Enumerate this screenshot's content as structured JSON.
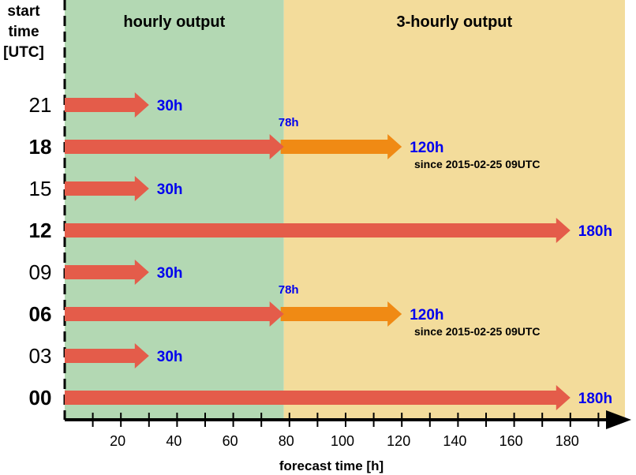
{
  "regions": {
    "hourly": {
      "label": "hourly output",
      "from": 0,
      "to": 78,
      "color": "#b3d8b3"
    },
    "threehourly": {
      "label": "3-hourly output",
      "from": 78,
      "to": 198,
      "color": "#f3dc9b"
    }
  },
  "y_axis": {
    "title_lines": [
      "start",
      "time",
      "[UTC]"
    ]
  },
  "x_axis": {
    "title": "forecast time [h]",
    "max": 198,
    "minor_tick_step": 10,
    "labels": [
      "20",
      "40",
      "60",
      "80",
      "100",
      "120",
      "140",
      "160",
      "180"
    ]
  },
  "colors": {
    "hourly_arrow": "#e45c4a",
    "threehourly_arrow": "#f08a14",
    "label_blue": "#0000ee"
  },
  "runs": [
    {
      "start": "21",
      "bold": false,
      "length": 30,
      "end_label": "30h"
    },
    {
      "start": "18",
      "bold": true,
      "length": 120,
      "split": 78,
      "split_label": "78h",
      "end_label": "120h",
      "note": "since 2015-02-25 09UTC"
    },
    {
      "start": "15",
      "bold": false,
      "length": 30,
      "end_label": "30h"
    },
    {
      "start": "12",
      "bold": true,
      "length": 180,
      "end_label": "180h"
    },
    {
      "start": "09",
      "bold": false,
      "length": 30,
      "end_label": "30h"
    },
    {
      "start": "06",
      "bold": true,
      "length": 120,
      "split": 78,
      "split_label": "78h",
      "end_label": "120h",
      "note": "since 2015-02-25 09UTC"
    },
    {
      "start": "03",
      "bold": false,
      "length": 30,
      "end_label": "30h"
    },
    {
      "start": "00",
      "bold": true,
      "length": 180,
      "end_label": "180h"
    }
  ]
}
